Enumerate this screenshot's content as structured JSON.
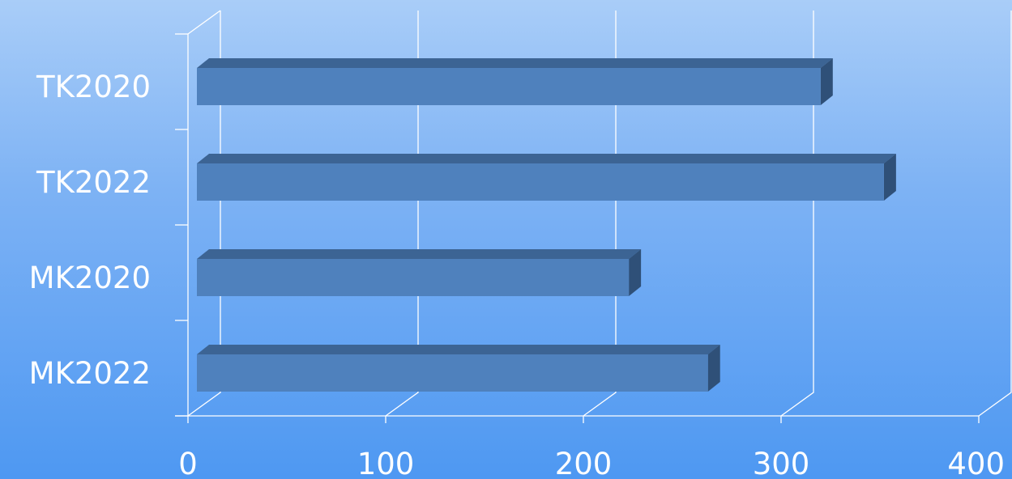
{
  "chart_data": {
    "type": "bar",
    "orientation": "horizontal",
    "style": "3d",
    "categories": [
      "MK2022",
      "MK2020",
      "TK2022",
      "TK2020"
    ],
    "series": [
      {
        "values": [
          263,
          223,
          352,
          320
        ]
      }
    ],
    "xlim": [
      0,
      400
    ],
    "ticks": [
      "0",
      "100",
      "200",
      "300",
      "400"
    ],
    "grid": true,
    "legend": "none"
  },
  "colors": {
    "background_top": "#a9cdf8",
    "background_bottom": "#4e98f2",
    "bar_front": "#4f81bd",
    "bar_top": "#3c6494",
    "bar_side": "#2f5078",
    "text": "#ffffff",
    "grid": "#ffffff"
  }
}
